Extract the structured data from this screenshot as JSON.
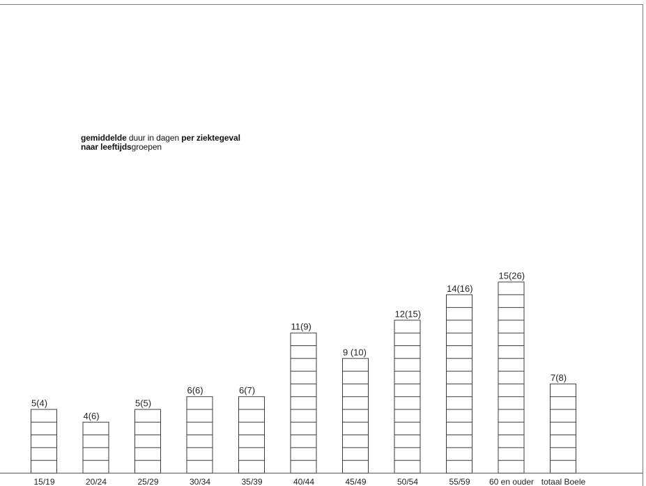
{
  "chart_data": {
    "type": "bar",
    "title_line1_bold": "gemiddelde",
    "title_line1_regular": " duur in dagen ",
    "title_line1_bold2": "per ziektegeval",
    "title_line2_bold": "naar leeftijds",
    "title_line2_regular": "groepen",
    "categories": [
      "15/19",
      "20/24",
      "25/29",
      "30/34",
      "35/39",
      "40/44",
      "45/49",
      "50/54",
      "55/59",
      "60 en ouder",
      "totaal Boele"
    ],
    "values": [
      5,
      4,
      5,
      6,
      6,
      11,
      9,
      12,
      14,
      15,
      7
    ],
    "labels": [
      "5(4)",
      "4(6)",
      "5(5)",
      "6(6)",
      "6(7)",
      "11(9)",
      "9 (10)",
      "12(15)",
      "14(16)",
      "15(26)",
      "7(8)"
    ],
    "ylim": [
      0,
      15
    ],
    "grid": false,
    "colors": {
      "stroke": "#3a3a3a",
      "background": "#ffffff"
    }
  }
}
